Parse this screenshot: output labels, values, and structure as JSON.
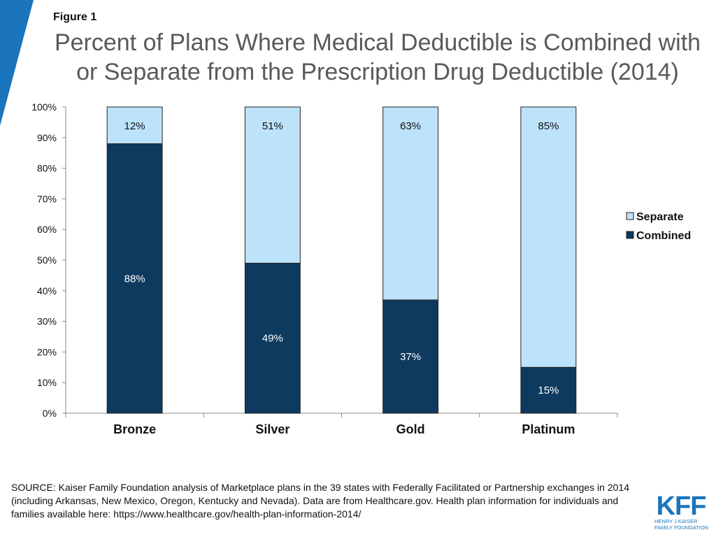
{
  "figure_label": "Figure 1",
  "title_line1": "Percent of Plans Where Medical Deductible is Combined with",
  "title_line2": "or Separate from the Prescription Drug Deductible (2014)",
  "source_text": "SOURCE: Kaiser Family Foundation analysis of Marketplace plans in the 39 states with Federally Facilitated or Partnership exchanges in 2014 (including Arkansas, New Mexico, Oregon, Kentucky and Nevada). Data are from Healthcare.gov. Health plan information for individuals and families available here: https://www.healthcare.gov/health-plan-information-2014/",
  "logo": {
    "letters": "KFF",
    "line1": "HENRY J KAISER",
    "line2": "FAMILY FOUNDATION",
    "color": "#1a75bc"
  },
  "accent_color": "#1a75bc",
  "chart_data": {
    "type": "bar",
    "stacked": true,
    "title": "Percent of Plans Where Medical Deductible is Combined with or Separate from the Prescription Drug Deductible (2014)",
    "xlabel": "",
    "ylabel": "",
    "ylim": [
      0,
      100
    ],
    "yticks": [
      "0%",
      "10%",
      "20%",
      "30%",
      "40%",
      "50%",
      "60%",
      "70%",
      "80%",
      "90%",
      "100%"
    ],
    "categories": [
      "Bronze",
      "Silver",
      "Gold",
      "Platinum"
    ],
    "series": [
      {
        "name": "Combined",
        "color": "#0f3a5f",
        "values": [
          88,
          49,
          37,
          15
        ],
        "labels": [
          "88%",
          "49%",
          "37%",
          "15%"
        ]
      },
      {
        "name": "Separate",
        "color": "#bde3fb",
        "values": [
          12,
          51,
          63,
          85
        ],
        "labels": [
          "12%",
          "51%",
          "63%",
          "85%"
        ]
      }
    ],
    "legend": {
      "position": "right",
      "entries": [
        "Separate",
        "Combined"
      ]
    }
  }
}
